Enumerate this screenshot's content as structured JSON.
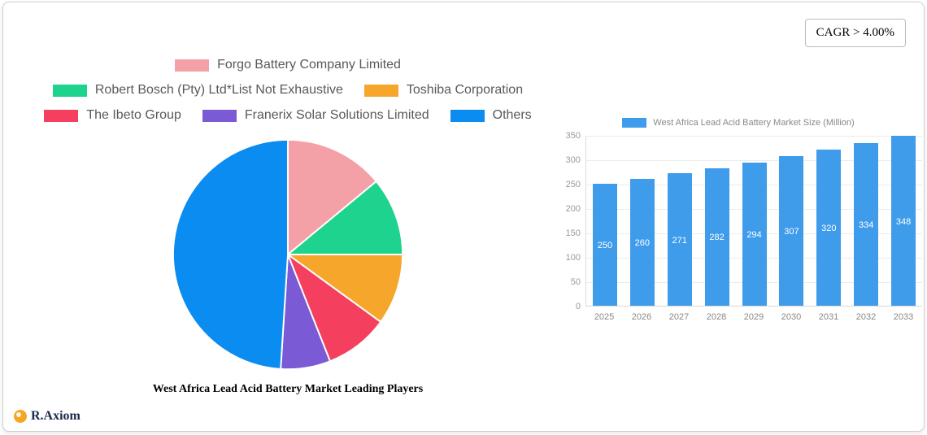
{
  "card": {
    "cagr_badge": "CAGR > 4.00%",
    "logo_text": "R.Axiom"
  },
  "chart_data": [
    {
      "type": "pie",
      "title": "West Africa Lead Acid Battery Market Leading Players",
      "legend_position": "top",
      "labels": [
        "Forgo Battery Company Limited",
        "Robert Bosch (Pty) Ltd*List Not Exhaustive",
        "Toshiba Corporation",
        "The Ibeto Group",
        "Franerix Solar Solutions Limited",
        "Others"
      ],
      "values": [
        14,
        11,
        10,
        9,
        7,
        49
      ],
      "colors": [
        "#f4a0a7",
        "#1dd38d",
        "#f5a62b",
        "#f4405e",
        "#7a5ad5",
        "#0a8cf0"
      ]
    },
    {
      "type": "bar",
      "title": "West Africa Lead Acid Battery Market Size (Million)",
      "categories": [
        "2025",
        "2026",
        "2027",
        "2028",
        "2029",
        "2030",
        "2031",
        "2032",
        "2033"
      ],
      "values": [
        250,
        260,
        271,
        282,
        294,
        307,
        320,
        334,
        348
      ],
      "ylim": [
        0,
        350
      ],
      "yticks": [
        0,
        50,
        100,
        150,
        200,
        250,
        300,
        350
      ],
      "bar_color": "#3f9ceb",
      "grid": true,
      "value_labels": "inside-white",
      "legend_position": "top"
    }
  ]
}
